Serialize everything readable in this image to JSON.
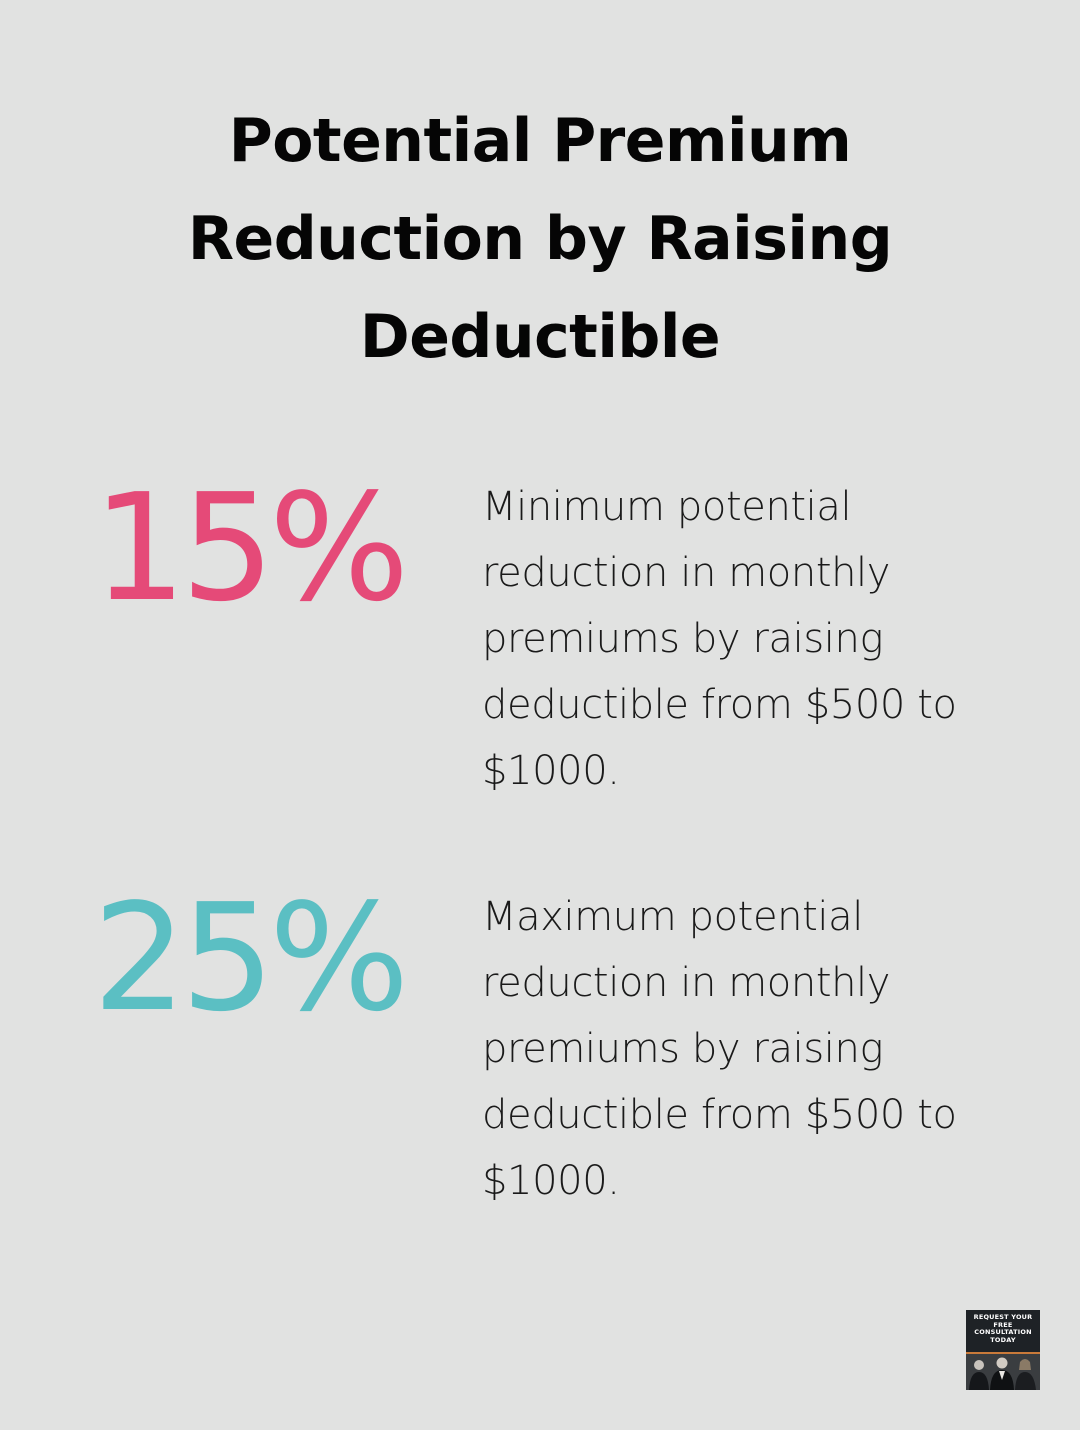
{
  "title": "Potential Premium Reduction by Raising Deductible",
  "stats": [
    {
      "value": "15%",
      "description": "Minimum potential reduction in monthly premiums by raising deductible from $500 to $1000.",
      "color": "#e54a78"
    },
    {
      "value": "25%",
      "description": "Maximum potential reduction in monthly premiums by raising deductible from $500 to $1000.",
      "color": "#5bbfc3"
    }
  ],
  "cta": {
    "label": "REQUEST YOUR FREE CONSULTATION TODAY",
    "icon": "team-photo-icon"
  },
  "colors": {
    "background": "#e1e2e1",
    "title": "#050505",
    "body_text": "#1a1a1a"
  }
}
